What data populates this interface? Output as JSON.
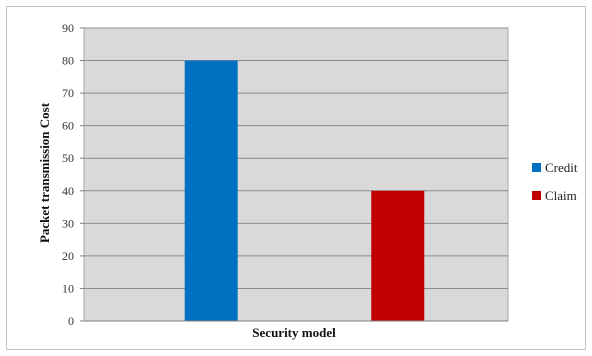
{
  "chart_data": {
    "type": "bar",
    "categories": [
      "Credit",
      "Claim"
    ],
    "values": [
      80,
      40
    ],
    "colors": [
      "#0070C0",
      "#C00000"
    ],
    "xlabel": "Security model",
    "ylabel": "Packet transmission Cost",
    "ylim": [
      0,
      90
    ],
    "yticks": [
      0,
      10,
      20,
      30,
      40,
      50,
      60,
      70,
      80,
      90
    ],
    "grid": true,
    "plot_background": "#d9d9d9",
    "legend": {
      "position": "right",
      "entries": [
        {
          "label": "Credit",
          "color": "#0070C0"
        },
        {
          "label": "Claim",
          "color": "#C00000"
        }
      ]
    }
  }
}
